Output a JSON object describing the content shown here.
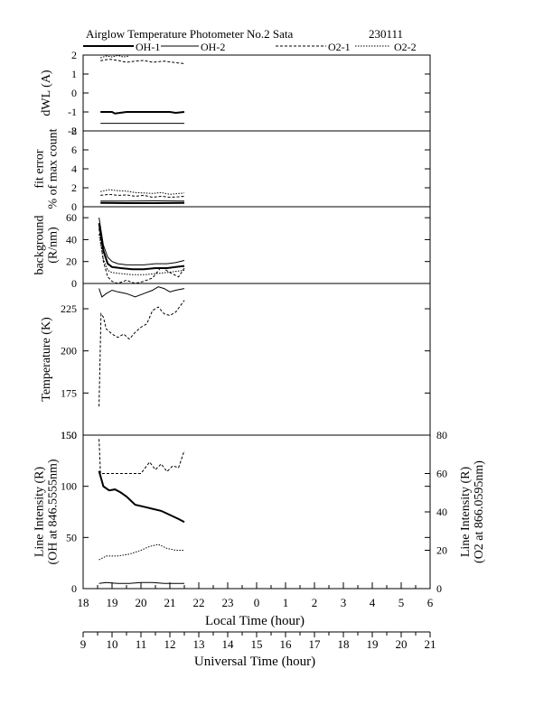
{
  "header": {
    "title": "Airglow Temperature Photometer No.2  Sata",
    "date": "230111"
  },
  "legend": [
    {
      "label": "OH-1",
      "dash": "solid",
      "width": 2
    },
    {
      "label": "OH-2",
      "dash": "solid",
      "width": 1
    },
    {
      "label": "O2-1",
      "dash": "dashed",
      "width": 1
    },
    {
      "label": "O2-2",
      "dash": "dotted",
      "width": 1
    }
  ],
  "chart_data": {
    "type": "line",
    "x_axis_local": {
      "label": "Local Time (hour)",
      "ticks": [
        "18",
        "19",
        "20",
        "21",
        "22",
        "23",
        "0",
        "1",
        "2",
        "3",
        "4",
        "5",
        "6"
      ]
    },
    "x_axis_ut": {
      "label": "Universal Time (hour)",
      "ticks": [
        "9",
        "10",
        "11",
        "12",
        "13",
        "14",
        "15",
        "16",
        "17",
        "18",
        "19",
        "20",
        "21"
      ]
    },
    "panels": [
      {
        "id": "dwl",
        "ylabel": [
          "dWL (A)"
        ],
        "ylim": [
          -2,
          2
        ],
        "ticks": [
          "2",
          "1",
          "0",
          "-1",
          "-2"
        ],
        "tick_values": [
          2,
          1,
          0,
          -1,
          -2
        ],
        "series": [
          {
            "ref": "OH-1",
            "x": [
              18.6,
              19.0,
              19.1,
              19.5,
              20.0,
              20.5,
              21.0,
              21.2,
              21.5
            ],
            "y": [
              -1.0,
              -1.0,
              -1.08,
              -1.0,
              -1.0,
              -1.0,
              -1.0,
              -1.05,
              -1.0
            ]
          },
          {
            "ref": "OH-2",
            "x": [
              18.6,
              19.5,
              20.5,
              21.5
            ],
            "y": [
              -1.6,
              -1.6,
              -1.6,
              -1.6
            ]
          },
          {
            "ref": "O2-1",
            "x": [
              18.6,
              18.9,
              19.2,
              19.5,
              19.8,
              20.1,
              20.4,
              20.8,
              21.1,
              21.5
            ],
            "y": [
              1.7,
              1.78,
              1.72,
              1.62,
              1.68,
              1.72,
              1.62,
              1.68,
              1.62,
              1.55
            ]
          },
          {
            "ref": "O2-2",
            "x": [
              18.6,
              18.8,
              19.0,
              19.2,
              19.4,
              19.6
            ],
            "y": [
              1.85,
              1.95,
              1.9,
              1.98,
              1.9,
              1.95
            ]
          }
        ]
      },
      {
        "id": "fiterr",
        "ylabel": [
          "fit error",
          "% of max count"
        ],
        "ylim": [
          0,
          8
        ],
        "ticks": [
          "8",
          "6",
          "4",
          "2",
          "0"
        ],
        "tick_values": [
          8,
          6,
          4,
          2,
          0
        ],
        "series": [
          {
            "ref": "OH-1",
            "x": [
              18.6,
              19.5,
              20.5,
              21.5
            ],
            "y": [
              0.4,
              0.38,
              0.38,
              0.4
            ]
          },
          {
            "ref": "OH-2",
            "x": [
              18.6,
              19.5,
              20.5,
              21.5
            ],
            "y": [
              0.6,
              0.6,
              0.62,
              0.6
            ]
          },
          {
            "ref": "O2-1",
            "x": [
              18.6,
              18.9,
              19.2,
              19.5,
              19.8,
              20.1,
              20.4,
              20.7,
              21.0,
              21.3,
              21.5
            ],
            "y": [
              1.2,
              1.3,
              1.2,
              1.25,
              1.1,
              1.2,
              1.0,
              1.1,
              1.0,
              1.05,
              1.1
            ]
          },
          {
            "ref": "O2-2",
            "x": [
              18.6,
              18.9,
              19.2,
              19.5,
              19.8,
              20.1,
              20.4,
              20.7,
              21.0,
              21.3,
              21.5
            ],
            "y": [
              1.6,
              1.8,
              1.7,
              1.65,
              1.5,
              1.45,
              1.4,
              1.5,
              1.3,
              1.4,
              1.45
            ]
          }
        ]
      },
      {
        "id": "bg",
        "ylabel": [
          "background",
          "(R/nm)"
        ],
        "ylim": [
          0,
          70
        ],
        "ticks": [
          "60",
          "40",
          "20",
          "0"
        ],
        "tick_values": [
          60,
          40,
          20,
          0
        ],
        "series": [
          {
            "ref": "OH-1",
            "x": [
              18.55,
              18.7,
              18.85,
              19.0,
              19.3,
              19.7,
              20.1,
              20.5,
              20.9,
              21.2,
              21.5
            ],
            "y": [
              55,
              30,
              18,
              15,
              14,
              13,
              13,
              14,
              14,
              15,
              16
            ]
          },
          {
            "ref": "OH-2",
            "x": [
              18.55,
              18.7,
              18.85,
              19.0,
              19.2,
              19.5,
              19.8,
              20.1,
              20.5,
              20.9,
              21.2,
              21.5
            ],
            "y": [
              60,
              35,
              24,
              20,
              18,
              17,
              17,
              17,
              18,
              18,
              19,
              21
            ]
          },
          {
            "ref": "O2-1",
            "x": [
              18.55,
              18.7,
              18.85,
              19.0,
              19.2,
              19.5,
              19.8,
              20.1,
              20.4,
              20.7,
              21.0,
              21.3,
              21.5
            ],
            "y": [
              50,
              20,
              6,
              2,
              0,
              3,
              0,
              2,
              5,
              15,
              10,
              6,
              14
            ]
          },
          {
            "ref": "O2-2",
            "x": [
              18.55,
              18.7,
              18.85,
              19.0,
              19.3,
              19.7,
              20.1,
              20.5,
              20.9,
              21.2,
              21.5
            ],
            "y": [
              45,
              22,
              12,
              10,
              9,
              8,
              8,
              9,
              10,
              11,
              12
            ]
          }
        ]
      },
      {
        "id": "temp",
        "ylabel": [
          "Temperature (K)"
        ],
        "ylim": [
          150,
          240
        ],
        "ticks": [
          "225",
          "200",
          "175",
          "150"
        ],
        "tick_values": [
          225,
          200,
          175,
          150
        ],
        "series": [
          {
            "ref": "OH-2",
            "x": [
              18.55,
              18.65,
              18.8,
              19.0,
              19.2,
              19.5,
              19.8,
              20.1,
              20.4,
              20.6,
              20.8,
              21.0,
              21.2,
              21.5
            ],
            "y": [
              237,
              232,
              234,
              236,
              235,
              234,
              232,
              234,
              236,
              238,
              237,
              235,
              236,
              237
            ]
          },
          {
            "ref": "O2-1",
            "x": [
              18.55,
              18.62,
              18.7,
              18.8,
              19.0,
              19.2,
              19.4,
              19.6,
              19.8,
              20.0,
              20.2,
              20.4,
              20.6,
              20.8,
              21.0,
              21.2,
              21.5
            ],
            "y": [
              167,
              222,
              220,
              213,
              210,
              208,
              210,
              207,
              211,
              214,
              216,
              224,
              226,
              222,
              221,
              223,
              230
            ]
          }
        ]
      },
      {
        "id": "intensity",
        "ylabel": [
          "Line Intensity (R)",
          "(OH at 846.5555nm)"
        ],
        "ylim": [
          0,
          150
        ],
        "ticks": [
          "150",
          "100",
          "50",
          "0"
        ],
        "tick_values": [
          150,
          100,
          50,
          0
        ],
        "ylabel_right": [
          "Line Intensity (R)",
          "(O2 at 866.0595nm)"
        ],
        "ylim_right": [
          0,
          80
        ],
        "ticks_right": [
          "80",
          "60",
          "40",
          "20",
          "0"
        ],
        "tick_values_right": [
          80,
          60,
          40,
          20,
          0
        ],
        "series": [
          {
            "ref": "OH-1",
            "axis": "left",
            "x": [
              18.55,
              18.7,
              18.9,
              19.1,
              19.3,
              19.5,
              19.8,
              20.1,
              20.4,
              20.7,
              21.0,
              21.3,
              21.5
            ],
            "y": [
              115,
              100,
              96,
              97,
              94,
              90,
              82,
              80,
              78,
              76,
              72,
              68,
              65
            ]
          },
          {
            "ref": "O2-1",
            "axis": "right",
            "x": [
              18.55,
              18.6,
              18.7,
              19.0,
              19.5,
              20.0,
              20.3,
              20.5,
              20.7,
              20.9,
              21.1,
              21.3,
              21.5
            ],
            "y": [
              78,
              60,
              60,
              60,
              60,
              60,
              66,
              62,
              65,
              61,
              64,
              63,
              72
            ]
          },
          {
            "ref": "O2-2",
            "axis": "right",
            "x": [
              18.55,
              18.8,
              19.2,
              19.6,
              20.0,
              20.3,
              20.6,
              20.9,
              21.2,
              21.5
            ],
            "y": [
              15,
              17,
              17,
              18,
              20,
              22,
              23,
              21,
              20,
              20
            ]
          },
          {
            "ref": "OH-2",
            "axis": "left",
            "x": [
              18.55,
              18.8,
              19.2,
              19.6,
              20.0,
              20.4,
              20.8,
              21.2,
              21.5
            ],
            "y": [
              5,
              6,
              5,
              5,
              6,
              6,
              5,
              5,
              5
            ]
          }
        ]
      }
    ]
  }
}
